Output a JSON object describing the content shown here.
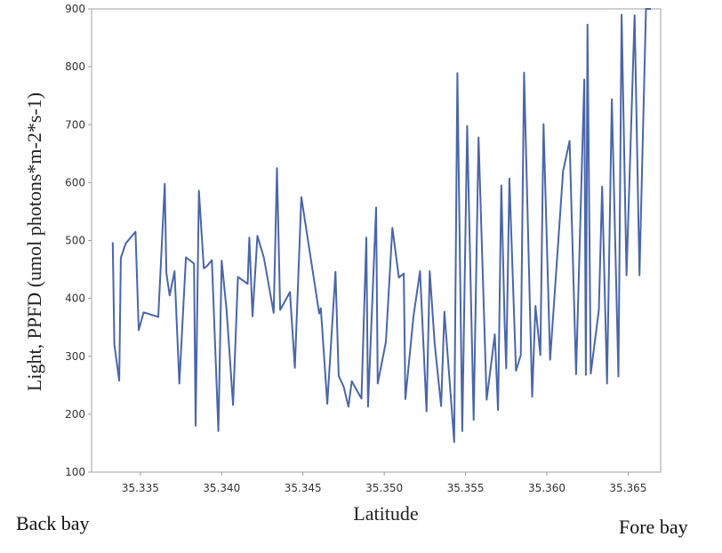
{
  "chart_data": {
    "type": "line",
    "xlabel": "Latitude",
    "ylabel": "Light, PPFD (umol photons*m-2*s-1)",
    "xlim": [
      35.332,
      35.367
    ],
    "ylim": [
      100,
      900
    ],
    "x_ticks": [
      "35.335",
      "35.340",
      "35.345",
      "35.350",
      "35.355",
      "35.360",
      "35.365"
    ],
    "y_ticks": [
      "100",
      "200",
      "300",
      "400",
      "500",
      "600",
      "700",
      "800",
      "900"
    ],
    "grid": false,
    "line_color": "#4a66aa",
    "series": [
      {
        "x": [
          35.3333,
          35.3334,
          35.3337,
          35.3338,
          35.3341,
          35.3347,
          35.3349,
          35.3352,
          35.3361,
          35.3365,
          35.3366,
          35.3368,
          35.3371,
          35.3374,
          35.3378,
          35.3383,
          35.3384,
          35.3386,
          35.3389,
          35.3391,
          35.3394,
          35.3398,
          35.34,
          35.3403,
          35.3405,
          35.3407,
          35.341,
          35.3416,
          35.3417,
          35.3419,
          35.3422,
          35.3426,
          35.3432,
          35.3434,
          35.3436,
          35.3442,
          35.3445,
          35.3449,
          35.3454,
          35.346,
          35.3461,
          35.3465,
          35.347,
          35.3472,
          35.3475,
          35.3478,
          35.348,
          35.3486,
          35.3489,
          35.349,
          35.3495,
          35.3496,
          35.3501,
          35.3505,
          35.3509,
          35.3512,
          35.3513,
          35.3518,
          35.3522,
          35.3526,
          35.3528,
          35.3531,
          35.3535,
          35.3537,
          35.3543,
          35.3545,
          35.3548,
          35.3551,
          35.3555,
          35.3558,
          35.3563,
          35.3568,
          35.357,
          35.3572,
          35.3574,
          35.3575,
          35.3577,
          35.3581,
          35.3584,
          35.3586,
          35.3591,
          35.3593,
          35.3596,
          35.3598,
          35.3602,
          35.361,
          35.3614,
          35.3618,
          35.3623,
          35.3624,
          35.3625,
          35.3627,
          35.3632,
          35.3634,
          35.3637,
          35.364,
          35.3644,
          35.3646,
          35.3649,
          35.3654,
          35.3657,
          35.3661,
          35.3663,
          35.3664,
          35.3664
        ],
        "y": [
          497,
          320,
          258,
          470,
          495,
          515,
          345,
          376,
          368,
          598,
          444,
          405,
          447,
          253,
          471,
          460,
          180,
          586,
          452,
          456,
          466,
          171,
          465,
          380,
          300,
          216,
          437,
          425,
          505,
          369,
          508,
          470,
          375,
          625,
          380,
          411,
          280,
          575,
          484,
          374,
          383,
          218,
          446,
          266,
          248,
          213,
          257,
          227,
          505,
          213,
          557,
          253,
          325,
          522,
          436,
          443,
          226,
          370,
          447,
          205,
          447,
          323,
          214,
          377,
          152,
          789,
          171,
          698,
          190,
          678,
          225,
          338,
          207,
          595,
          360,
          279,
          607,
          275,
          302,
          790,
          230,
          387,
          302,
          701,
          294,
          620,
          672,
          269,
          778,
          268,
          873,
          270,
          380,
          593,
          253,
          744,
          265,
          890,
          440,
          889,
          440,
          900,
          900,
          900,
          900
        ]
      }
    ]
  },
  "labels": {
    "back_bay": "Back bay",
    "fore_bay": "Fore bay"
  }
}
